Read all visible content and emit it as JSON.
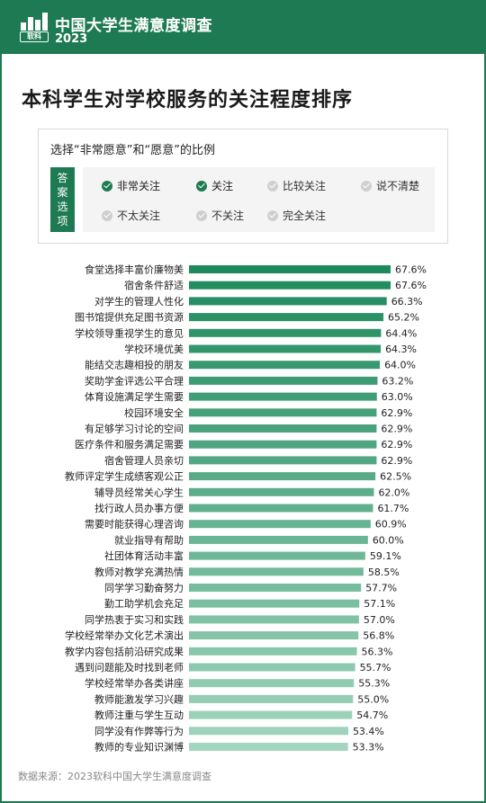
{
  "header": {
    "brand_title": "中国大学生满意度调查",
    "brand_year": "2023",
    "logo_text": "软科"
  },
  "page_title": "本科学生对学校服务的关注程度排序",
  "legend": {
    "heading": "选择“非常愿意”和“愿意”的比例",
    "tag_chars": [
      "答",
      "案",
      "选",
      "项"
    ],
    "options": [
      {
        "label": "非常关注",
        "selected": true,
        "icon": "check-circle-icon"
      },
      {
        "label": "关注",
        "selected": true,
        "icon": "check-circle-icon"
      },
      {
        "label": "比较关注",
        "selected": false,
        "icon": "check-circle-icon"
      },
      {
        "label": "说不清楚",
        "selected": false,
        "icon": "check-circle-icon"
      },
      {
        "label": "不太关注",
        "selected": false,
        "icon": "check-circle-icon"
      },
      {
        "label": "不关注",
        "selected": false,
        "icon": "check-circle-icon"
      },
      {
        "label": "完全关注",
        "selected": false,
        "icon": "check-circle-icon"
      }
    ]
  },
  "colors": {
    "brand": "#1e7a52",
    "bar_dark": "#1e8a5c",
    "bar_light": "#a3d6be",
    "checked": "#1e7a52",
    "unchecked": "#cfcfcf"
  },
  "chart_data": {
    "type": "bar",
    "orientation": "horizontal",
    "unit": "%",
    "xlim": [
      0,
      70
    ],
    "grid": false,
    "categories": [
      "食堂选择丰富价廉物美",
      "宿舍条件舒适",
      "对学生的管理人性化",
      "图书馆提供充足图书资源",
      "学校领导重视学生的意见",
      "学校环境优美",
      "能结交志趣相投的朋友",
      "奖助学金评选公平合理",
      "体育设施满足学生需要",
      "校园环境安全",
      "有足够学习讨论的空间",
      "医疗条件和服务满足需要",
      "宿舍管理人员亲切",
      "教师评定学生成绩客观公正",
      "辅导员经常关心学生",
      "找行政人员办事方便",
      "需要时能获得心理咨询",
      "就业指导有帮助",
      "社团体育活动丰富",
      "教师对教学充满热情",
      "同学学习勤奋努力",
      "勤工助学机会充足",
      "同学热衷于实习和实践",
      "学校经常举办文化艺术演出",
      "教学内容包括前沿研究成果",
      "遇到问题能及时找到老师",
      "学校经常举办各类讲座",
      "教师能激发学习兴趣",
      "教师注重与学生互动",
      "同学没有作弊等行为",
      "教师的专业知识渊博"
    ],
    "values": [
      67.6,
      67.6,
      66.3,
      65.2,
      64.4,
      64.3,
      64.0,
      63.2,
      63.0,
      62.9,
      62.9,
      62.9,
      62.9,
      62.5,
      62.0,
      61.7,
      60.9,
      60.0,
      59.1,
      58.5,
      57.7,
      57.1,
      57.0,
      56.8,
      56.3,
      55.7,
      55.3,
      55.0,
      54.7,
      53.4,
      53.3
    ],
    "value_labels": [
      "67.6%",
      "67.6%",
      "66.3%",
      "65.2%",
      "64.4%",
      "64.3%",
      "64.0%",
      "63.2%",
      "63.0%",
      "62.9%",
      "62.9%",
      "62.9%",
      "62.9%",
      "62.5%",
      "62.0%",
      "61.7%",
      "60.9%",
      "60.0%",
      "59.1%",
      "58.5%",
      "57.7%",
      "57.1%",
      "57.0%",
      "56.8%",
      "56.3%",
      "55.7%",
      "55.3%",
      "55.0%",
      "54.7%",
      "53.4%",
      "53.3%"
    ]
  },
  "source": "数据来源：2023软科中国大学生满意度调查"
}
